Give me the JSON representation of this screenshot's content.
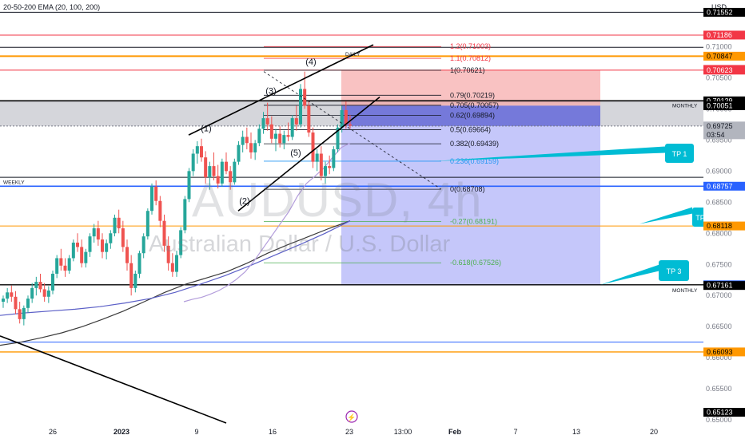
{
  "indicator_label": "20-50-200 EMA (20, 100, 200)",
  "watermark": {
    "symbol": "AUDUSD, 4h",
    "name": "Australian Dollar / U.S. Dollar"
  },
  "colors": {
    "up": "#26a69a",
    "down": "#ef5350",
    "bg": "#ffffff",
    "text": "#131722",
    "axis_box": "#000000",
    "red_level": "#f23645",
    "orange_level": "#ff9800",
    "blue_level": "#2962ff",
    "tp_box": "#00bcd4"
  },
  "chart_data": {
    "type": "candlestick",
    "symbol": "AUDUSD",
    "timeframe": "4h",
    "ylim": [
      0.6495,
      0.7175
    ],
    "y_unit_label": "USD",
    "y_ticks": [
      "0.71000",
      "0.70500",
      "0.70000",
      "0.69500",
      "0.69000",
      "0.68500",
      "0.68000",
      "0.67500",
      "0.67000",
      "0.66500",
      "0.66000",
      "0.65500",
      "0.65000"
    ],
    "x_ticks": [
      "26",
      "2023",
      "9",
      "16",
      "23",
      "13:00",
      "Feb",
      "7",
      "13",
      "20"
    ],
    "price_badges": [
      {
        "label": "0.71552",
        "value": 0.71552,
        "style": "dark"
      },
      {
        "label": "0.71186",
        "value": 0.71186,
        "style": "red"
      },
      {
        "label": "0.70847",
        "value": 0.70847,
        "style": "orange"
      },
      {
        "label": "0.70634",
        "value": 0.70634,
        "style": "red"
      },
      {
        "label": "0.70623",
        "value": 0.70623,
        "style": "red"
      },
      {
        "label": "0.70129",
        "value": 0.70129,
        "style": "dark"
      },
      {
        "label": "0.70051",
        "value": 0.70051,
        "style": "dark"
      },
      {
        "label": "0.69725",
        "value": 0.69725,
        "style": "gray",
        "sub": "03:54"
      },
      {
        "label": "0.68757",
        "value": 0.68757,
        "style": "blue"
      },
      {
        "label": "0.68118",
        "value": 0.68118,
        "style": "orange"
      },
      {
        "label": "0.67172",
        "value": 0.67172,
        "style": "blue"
      },
      {
        "label": "0.67161",
        "value": 0.67161,
        "style": "dark"
      },
      {
        "label": "0.66093",
        "value": 0.66093,
        "style": "orange"
      },
      {
        "label": "0.65123",
        "value": 0.65123,
        "style": "dark"
      }
    ],
    "fib_levels": [
      {
        "label": "1.2(0.71003)",
        "value": 0.71003,
        "color": "#f23645"
      },
      {
        "label": "1.1(0.70812)",
        "value": 0.70812,
        "color": "#f23645"
      },
      {
        "label": "1(0.70621)",
        "value": 0.70621,
        "color": "#131722"
      },
      {
        "label": "0.79(0.70219)",
        "value": 0.70219,
        "color": "#131722"
      },
      {
        "label": "0.705(0.70057)",
        "value": 0.70057,
        "color": "#131722"
      },
      {
        "label": "0.62(0.69894)",
        "value": 0.69894,
        "color": "#131722"
      },
      {
        "label": "0.5(0.69664)",
        "value": 0.69664,
        "color": "#131722"
      },
      {
        "label": "0.382(0.69439)",
        "value": 0.69439,
        "color": "#131722"
      },
      {
        "label": "0.236(0.69159)",
        "value": 0.69159,
        "color": "#2196f3"
      },
      {
        "label": "0(0.68708)",
        "value": 0.68708,
        "color": "#131722"
      },
      {
        "label": "-0.27(0.68191)",
        "value": 0.68191,
        "color": "#4caf50"
      },
      {
        "label": "-0.618(0.67526)",
        "value": 0.67526,
        "color": "#4caf50"
      }
    ],
    "zone_labels": {
      "daily": "DAILY",
      "weekly": "WEEKLY",
      "monthly_top": "MONTHLY",
      "monthly_bottom": "MONTHLY"
    },
    "wave_labels": [
      "(1)",
      "(2)",
      "(3)",
      "(4)",
      "(5)"
    ],
    "take_profits": [
      "TP 1",
      "TP",
      "TP 3"
    ],
    "position": {
      "type": "short",
      "entry": 0.70051,
      "stop": 0.70623,
      "target": 0.67172
    },
    "candles": [
      [
        0.669,
        0.67,
        0.668,
        0.6695
      ],
      [
        0.6695,
        0.6712,
        0.6688,
        0.6705
      ],
      [
        0.6705,
        0.6716,
        0.669,
        0.6698
      ],
      [
        0.6698,
        0.6707,
        0.667,
        0.6678
      ],
      [
        0.6678,
        0.669,
        0.6655,
        0.6662
      ],
      [
        0.6662,
        0.6684,
        0.6652,
        0.668
      ],
      [
        0.668,
        0.67,
        0.6672,
        0.6695
      ],
      [
        0.6695,
        0.672,
        0.6688,
        0.6712
      ],
      [
        0.6712,
        0.673,
        0.67,
        0.6722
      ],
      [
        0.6722,
        0.6735,
        0.6705,
        0.671
      ],
      [
        0.671,
        0.672,
        0.669,
        0.6698
      ],
      [
        0.6698,
        0.6715,
        0.6688,
        0.6708
      ],
      [
        0.6708,
        0.674,
        0.6702,
        0.6735
      ],
      [
        0.6735,
        0.6765,
        0.6728,
        0.676
      ],
      [
        0.676,
        0.6775,
        0.674,
        0.6748
      ],
      [
        0.6748,
        0.676,
        0.673,
        0.674
      ],
      [
        0.674,
        0.6765,
        0.6735,
        0.676
      ],
      [
        0.676,
        0.679,
        0.6755,
        0.6785
      ],
      [
        0.6785,
        0.68,
        0.677,
        0.6778
      ],
      [
        0.6778,
        0.679,
        0.6745,
        0.6752
      ],
      [
        0.6752,
        0.6775,
        0.6745,
        0.677
      ],
      [
        0.677,
        0.68,
        0.6762,
        0.6795
      ],
      [
        0.6795,
        0.6815,
        0.6785,
        0.6808
      ],
      [
        0.6808,
        0.682,
        0.678,
        0.679
      ],
      [
        0.679,
        0.68,
        0.676,
        0.677
      ],
      [
        0.677,
        0.679,
        0.6758,
        0.6784
      ],
      [
        0.6784,
        0.6805,
        0.6775,
        0.68
      ],
      [
        0.68,
        0.683,
        0.6795,
        0.6825
      ],
      [
        0.6825,
        0.6838,
        0.68,
        0.6808
      ],
      [
        0.6808,
        0.682,
        0.677,
        0.6778
      ],
      [
        0.6778,
        0.679,
        0.674,
        0.6752
      ],
      [
        0.6752,
        0.6765,
        0.67,
        0.6712
      ],
      [
        0.6712,
        0.674,
        0.6705,
        0.6735
      ],
      [
        0.6735,
        0.6772,
        0.6728,
        0.6768
      ],
      [
        0.6768,
        0.68,
        0.676,
        0.6795
      ],
      [
        0.6795,
        0.684,
        0.679,
        0.6836
      ],
      [
        0.6836,
        0.688,
        0.683,
        0.6875
      ],
      [
        0.6875,
        0.6885,
        0.6845,
        0.6852
      ],
      [
        0.6852,
        0.686,
        0.681,
        0.682
      ],
      [
        0.682,
        0.683,
        0.677,
        0.678
      ],
      [
        0.678,
        0.6795,
        0.674,
        0.6752
      ],
      [
        0.6752,
        0.6768,
        0.673,
        0.6738
      ],
      [
        0.6738,
        0.6772,
        0.673,
        0.6765
      ],
      [
        0.6765,
        0.681,
        0.676,
        0.6805
      ],
      [
        0.6805,
        0.686,
        0.68,
        0.6855
      ],
      [
        0.6855,
        0.6905,
        0.685,
        0.69
      ],
      [
        0.69,
        0.6935,
        0.6892,
        0.6928
      ],
      [
        0.6928,
        0.6948,
        0.6912,
        0.694
      ],
      [
        0.694,
        0.6952,
        0.6915,
        0.6922
      ],
      [
        0.6922,
        0.6932,
        0.688,
        0.689
      ],
      [
        0.689,
        0.6915,
        0.687,
        0.6908
      ],
      [
        0.6908,
        0.693,
        0.6885,
        0.6892
      ],
      [
        0.6892,
        0.691,
        0.6872,
        0.688
      ],
      [
        0.688,
        0.692,
        0.6875,
        0.6915
      ],
      [
        0.6915,
        0.693,
        0.6895,
        0.69
      ],
      [
        0.69,
        0.6908,
        0.687,
        0.6882
      ],
      [
        0.6882,
        0.692,
        0.6878,
        0.6915
      ],
      [
        0.6915,
        0.6948,
        0.691,
        0.6942
      ],
      [
        0.6942,
        0.6965,
        0.693,
        0.6955
      ],
      [
        0.6955,
        0.697,
        0.6935,
        0.6945
      ],
      [
        0.6945,
        0.6962,
        0.692,
        0.693
      ],
      [
        0.693,
        0.695,
        0.6918,
        0.6945
      ],
      [
        0.6945,
        0.6975,
        0.694,
        0.6968
      ],
      [
        0.6968,
        0.6995,
        0.696,
        0.6985
      ],
      [
        0.6985,
        0.701,
        0.6965,
        0.6975
      ],
      [
        0.6975,
        0.6988,
        0.6945,
        0.6952
      ],
      [
        0.6952,
        0.6968,
        0.6932,
        0.696
      ],
      [
        0.696,
        0.6972,
        0.6938,
        0.6945
      ],
      [
        0.6945,
        0.6965,
        0.6935,
        0.6958
      ],
      [
        0.6958,
        0.6978,
        0.6948,
        0.6955
      ],
      [
        0.6955,
        0.699,
        0.695,
        0.6985
      ],
      [
        0.6985,
        0.7005,
        0.6965,
        0.6975
      ],
      [
        0.6975,
        0.704,
        0.697,
        0.7032
      ],
      [
        0.7032,
        0.706,
        0.7,
        0.7005
      ],
      [
        0.7005,
        0.7012,
        0.6955,
        0.6962
      ],
      [
        0.6962,
        0.697,
        0.6905,
        0.6915
      ],
      [
        0.6915,
        0.6935,
        0.69,
        0.6928
      ],
      [
        0.6928,
        0.694,
        0.6885,
        0.6892
      ],
      [
        0.6892,
        0.6915,
        0.688,
        0.6908
      ],
      [
        0.6908,
        0.6925,
        0.6895,
        0.6905
      ],
      [
        0.6905,
        0.694,
        0.69,
        0.6935
      ],
      [
        0.6935,
        0.6975,
        0.693,
        0.697
      ],
      [
        0.697,
        0.7005,
        0.6962,
        0.6998
      ],
      [
        0.6998,
        0.7012,
        0.6968,
        0.6975
      ],
      [
        0.6975,
        0.699,
        0.6968,
        0.6973
      ]
    ],
    "ema_20": [
      0.669,
      0.6694,
      0.6697,
      0.6702,
      0.6708,
      0.6716,
      0.6726,
      0.6738,
      0.6755,
      0.6775,
      0.6795,
      0.6815,
      0.6835,
      0.686,
      0.688,
      0.6892,
      0.6905,
      0.6922,
      0.6938,
      0.6945
    ],
    "ema_100": [
      0.6668,
      0.6672,
      0.6675,
      0.6678,
      0.6682,
      0.6688,
      0.6695,
      0.6705,
      0.6718,
      0.6732,
      0.6748,
      0.6765,
      0.6782,
      0.68,
      0.682
    ],
    "ema_200": [
      0.662,
      0.6625,
      0.6632,
      0.664,
      0.665,
      0.6662,
      0.6675,
      0.669,
      0.6705,
      0.6718,
      0.6728,
      0.6738,
      0.6752,
      0.6768,
      0.6782,
      0.6795,
      0.6808,
      0.682
    ]
  }
}
